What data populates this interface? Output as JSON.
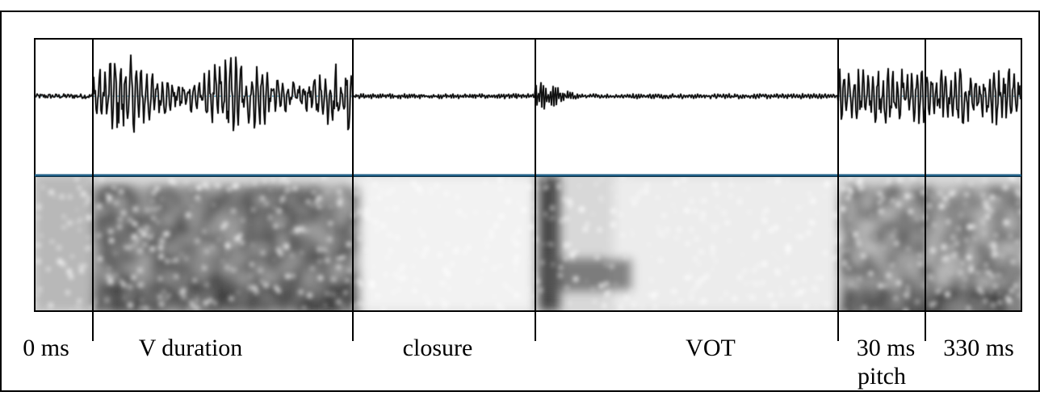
{
  "figure": {
    "panels": [
      "waveform",
      "spectrogram"
    ],
    "labels": {
      "start_time": "0 ms",
      "v_duration": "V duration",
      "closure": "closure",
      "vot": "VOT",
      "window": "30 ms",
      "pitch": "pitch",
      "end_time": "330 ms"
    },
    "colors": {
      "waveform": "#111111",
      "waveform_fill": "#777777",
      "zero_line": "#5aa6c8",
      "panel_divider": "#1f5f86",
      "boundary": "#000000"
    }
  }
}
